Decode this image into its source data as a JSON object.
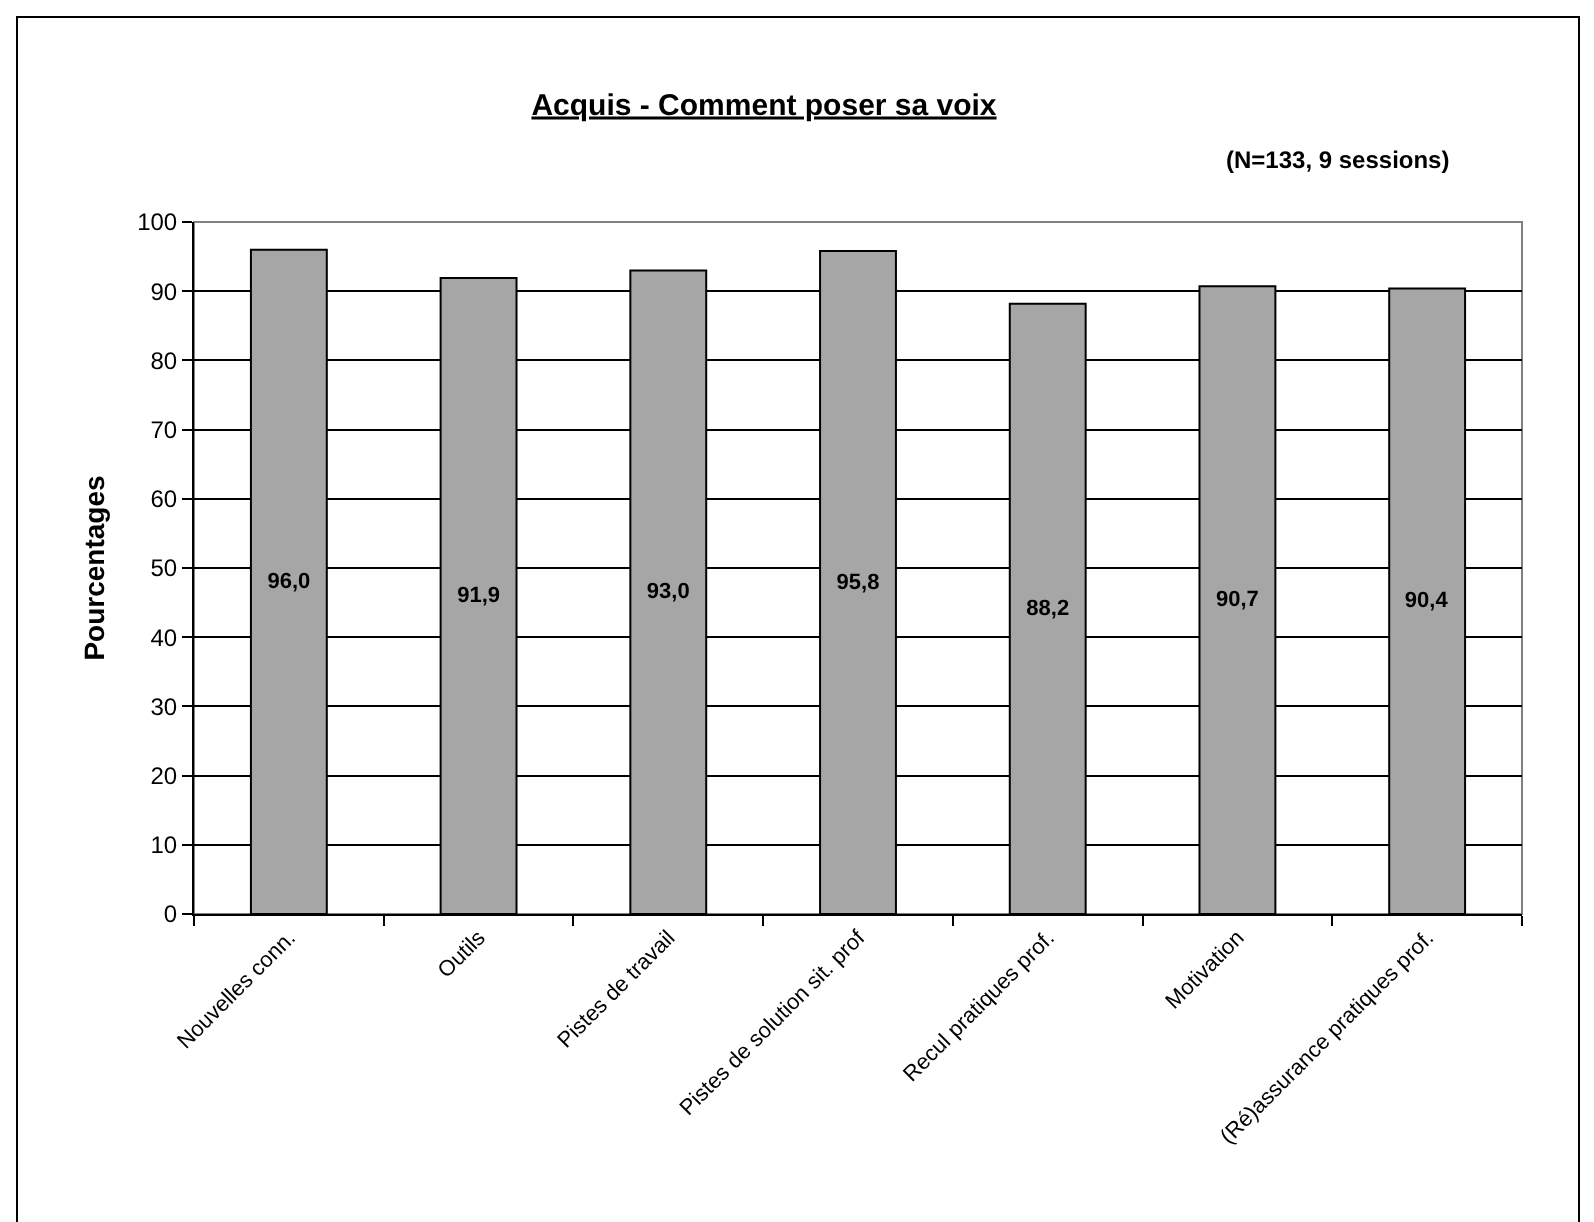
{
  "chart_data": {
    "type": "bar",
    "title": "Acquis - Comment poser sa voix",
    "subtitle": "(N=133, 9 sessions)",
    "ylabel": "Pourcentages",
    "categories": [
      "Nouvelles conn.",
      "Outils",
      "Pistes de travail",
      "Pistes de solution sit. prof",
      "Recul pratiques prof.",
      "Motivation",
      "(Ré)assurance pratiques prof."
    ],
    "values": [
      96.0,
      91.9,
      93.0,
      95.8,
      88.2,
      90.7,
      90.4
    ],
    "value_labels": [
      "96,0",
      "91,9",
      "93,0",
      "95,8",
      "88,2",
      "90,7",
      "90,4"
    ],
    "color": "#a6a6a6",
    "ylim": [
      0,
      100
    ],
    "yticks": [
      0,
      10,
      20,
      30,
      40,
      50,
      60,
      70,
      80,
      90,
      100
    ],
    "grid": "y"
  }
}
